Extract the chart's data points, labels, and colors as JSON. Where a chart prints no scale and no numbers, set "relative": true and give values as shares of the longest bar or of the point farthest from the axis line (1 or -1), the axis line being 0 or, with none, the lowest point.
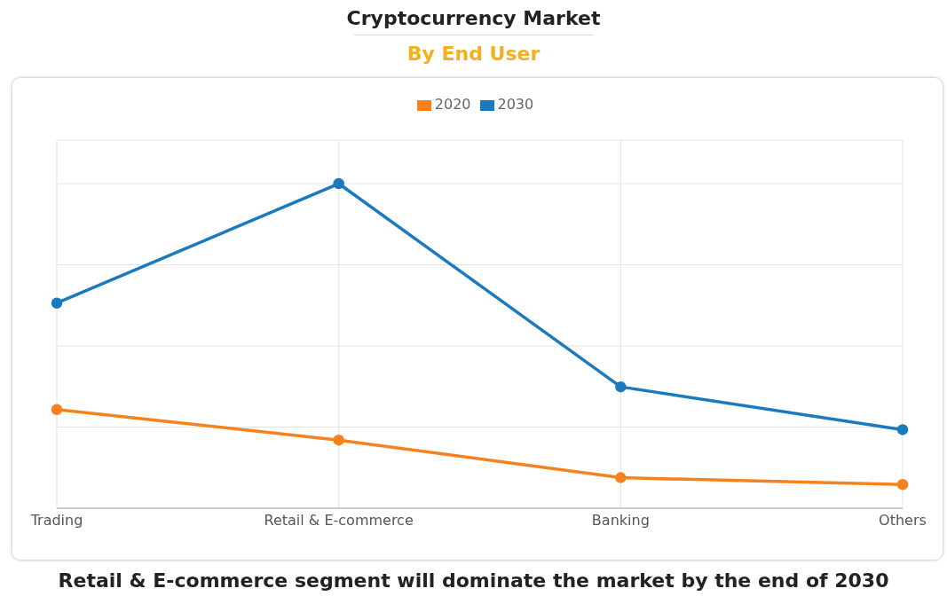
{
  "chart_data": {
    "type": "line",
    "title": "Cryptocurrency Market",
    "subtitle": "By End User",
    "relative": true,
    "categories": [
      "Trading",
      "Retail & E-commerce",
      "Banking",
      "Others"
    ],
    "series": [
      {
        "name": "2020",
        "color": "#f5821f",
        "values": [
          0.304,
          0.21,
          0.094,
          0.073
        ]
      },
      {
        "name": "2030",
        "color": "#1a7abf",
        "values": [
          0.632,
          1,
          0.374,
          0.242
        ]
      }
    ],
    "grid": true,
    "legend": "top",
    "marker": "circle",
    "line_style": "solid",
    "annotations": [
      "Retail & E-commerce segment will dominate the market by the end of 2030"
    ]
  }
}
